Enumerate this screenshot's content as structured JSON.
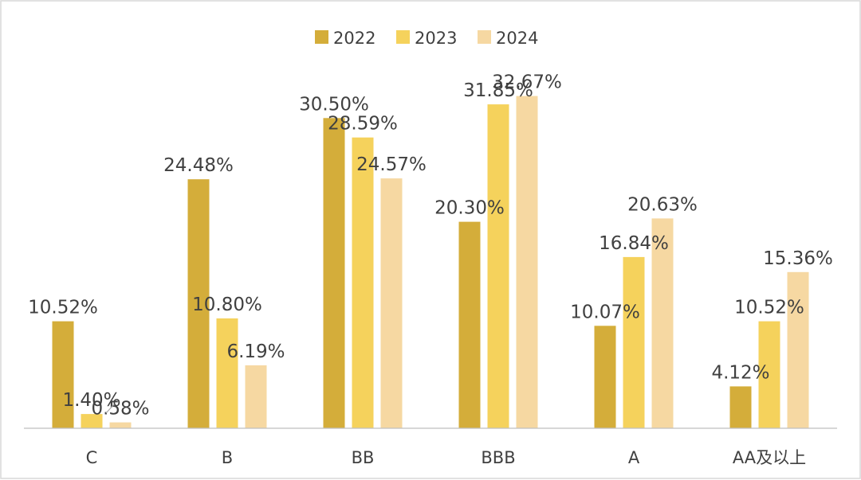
{
  "chart_data": {
    "type": "bar",
    "title": "",
    "xlabel": "",
    "ylabel": "",
    "categories": [
      "C",
      "B",
      "BB",
      "BBB",
      "A",
      "AA及以上"
    ],
    "series": [
      {
        "name": "2022",
        "color": "#d4ad3a",
        "values": [
          10.52,
          24.48,
          30.5,
          20.3,
          10.07,
          4.12
        ],
        "labels": [
          "10.52%",
          "24.48%",
          "30.50%",
          "20.30%",
          "10.07%",
          "4.12%"
        ]
      },
      {
        "name": "2023",
        "color": "#f5d25c",
        "values": [
          1.4,
          10.8,
          28.59,
          31.85,
          16.84,
          10.52
        ],
        "labels": [
          "1.40%",
          "10.80%",
          "28.59%",
          "31.85%",
          "16.84%",
          "10.52%"
        ]
      },
      {
        "name": "2024",
        "color": "#f6d8a2",
        "values": [
          0.58,
          6.19,
          24.57,
          32.67,
          20.63,
          15.36
        ],
        "labels": [
          "0.58%",
          "6.19%",
          "24.57%",
          "32.67%",
          "20.63%",
          "15.36%"
        ]
      }
    ],
    "ylim": [
      0,
      33.5
    ],
    "legend_position": "top-center",
    "grid": false
  }
}
